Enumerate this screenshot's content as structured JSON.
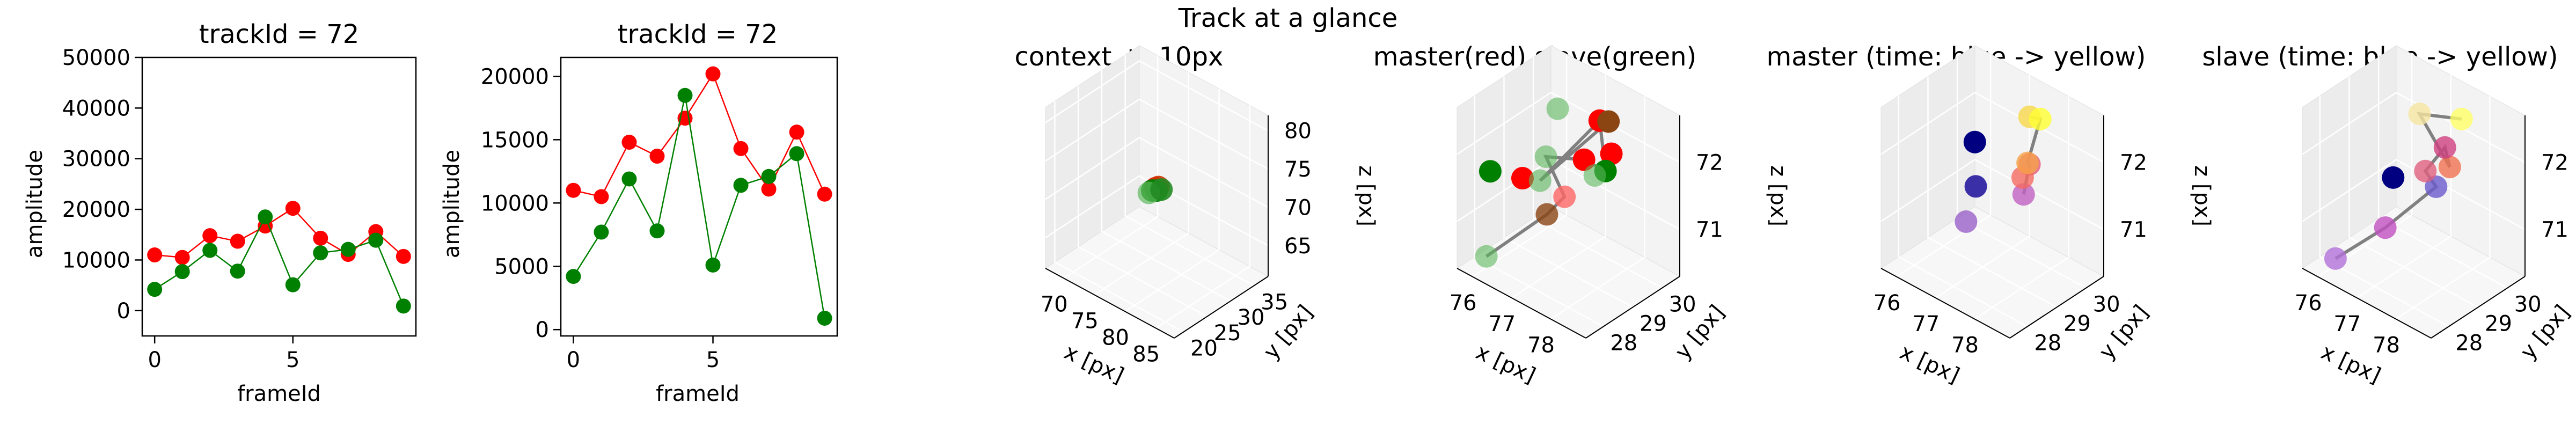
{
  "figure_title": "Track at a glance",
  "chart_data": [
    {
      "type": "line",
      "title": "trackId = 72",
      "xlabel": "frameId",
      "ylabel": "amplitude",
      "xlim": [
        -0.45,
        9.45
      ],
      "ylim": [
        -5000,
        50000
      ],
      "xticks": [
        0,
        5
      ],
      "xtick_labels": [
        "0",
        "5"
      ],
      "yticks": [
        0,
        10000,
        20000,
        30000,
        40000,
        50000
      ],
      "ytick_labels": [
        "0",
        "10000",
        "20000",
        "30000",
        "40000",
        "50000"
      ],
      "x": [
        0,
        1,
        2,
        3,
        4,
        5,
        6,
        7,
        8,
        9
      ],
      "series": [
        {
          "name": "master",
          "color": "#ff0000",
          "values": [
            11000,
            10500,
            14800,
            13700,
            16700,
            20200,
            14300,
            11100,
            15600,
            10700
          ]
        },
        {
          "name": "slave",
          "color": "#008000",
          "values": [
            4200,
            7700,
            11900,
            7800,
            18500,
            5100,
            11400,
            12100,
            13900,
            900
          ]
        }
      ]
    },
    {
      "type": "line",
      "title": "trackId = 72",
      "xlabel": "frameId",
      "ylabel": "amplitude",
      "xlim": [
        -0.45,
        9.45
      ],
      "ylim": [
        -500,
        21500
      ],
      "xticks": [
        0,
        5
      ],
      "xtick_labels": [
        "0",
        "5"
      ],
      "yticks": [
        0,
        5000,
        10000,
        15000,
        20000
      ],
      "ytick_labels": [
        "0",
        "5000",
        "10000",
        "15000",
        "20000"
      ],
      "x": [
        0,
        1,
        2,
        3,
        4,
        5,
        6,
        7,
        8,
        9
      ],
      "series": [
        {
          "name": "master",
          "color": "#ff0000",
          "values": [
            11000,
            10500,
            14800,
            13700,
            16700,
            20200,
            14300,
            11100,
            15600,
            10700
          ]
        },
        {
          "name": "slave",
          "color": "#008000",
          "values": [
            4200,
            7700,
            11900,
            7800,
            18500,
            5100,
            11400,
            12100,
            13900,
            900
          ]
        }
      ]
    },
    {
      "type": "scatter3d",
      "title": "context +- 10px",
      "xlabel": "x [px]",
      "ylabel": "y [px]",
      "zlabel": "z [px]",
      "xlim": [
        67,
        88
      ],
      "ylim": [
        18,
        38
      ],
      "zlim": [
        61,
        82
      ],
      "xticks": [
        70,
        75,
        80,
        85
      ],
      "yticks": [
        20,
        25,
        30,
        35
      ],
      "zticks": [
        65,
        70,
        75,
        80
      ],
      "xtick_labels": [
        "70",
        "75",
        "80",
        "85"
      ],
      "ytick_labels": [
        "20",
        "25",
        "30",
        "35"
      ],
      "ztick_labels": [
        "65",
        "70",
        "75",
        "80"
      ],
      "points": [
        {
          "x": 77.0,
          "y": 28.4,
          "z": 71.6,
          "color": "#ff0000",
          "alpha": 0.9
        },
        {
          "x": 77.3,
          "y": 28.6,
          "z": 71.8,
          "color": "#cc3300",
          "alpha": 0.9
        },
        {
          "x": 76.6,
          "y": 28.2,
          "z": 71.2,
          "color": "#008000",
          "alpha": 0.9
        },
        {
          "x": 76.8,
          "y": 28.9,
          "z": 71.0,
          "color": "#008000",
          "alpha": 0.9
        },
        {
          "x": 76.2,
          "y": 28.0,
          "z": 70.8,
          "color": "#5cb85c",
          "alpha": 0.7
        },
        {
          "x": 77.5,
          "y": 29.0,
          "z": 71.4,
          "color": "#228b22",
          "alpha": 0.9
        }
      ],
      "path": [
        [
          76.2,
          28.0,
          70.8
        ],
        [
          76.8,
          28.9,
          71.0
        ],
        [
          77.3,
          28.6,
          71.8
        ]
      ]
    },
    {
      "type": "scatter3d",
      "title": "master(red) slave(green)",
      "xlabel": "x [px]",
      "ylabel": "y [px]",
      "zlabel": "z [px]",
      "xlim": [
        75.6,
        78.9
      ],
      "ylim": [
        27.4,
        30.6
      ],
      "zlim": [
        70.3,
        72.7
      ],
      "xticks": [
        76,
        77,
        78
      ],
      "yticks": [
        28,
        29,
        30
      ],
      "zticks": [
        71,
        72
      ],
      "xtick_labels": [
        "76",
        "77",
        "78"
      ],
      "ytick_labels": [
        "28",
        "29",
        "30"
      ],
      "ztick_labels": [
        "71",
        "72"
      ],
      "points": [
        {
          "x": 76.9,
          "y": 29.1,
          "z": 72.6,
          "color": "#5cb85c",
          "alpha": 0.6
        },
        {
          "x": 77.6,
          "y": 29.6,
          "z": 72.5,
          "color": "#ff0000",
          "alpha": 1.0
        },
        {
          "x": 77.6,
          "y": 29.9,
          "z": 72.4,
          "color": "#8b4513",
          "alpha": 1.0
        },
        {
          "x": 76.9,
          "y": 28.7,
          "z": 72.0,
          "color": "#5cb85c",
          "alpha": 0.6
        },
        {
          "x": 77.9,
          "y": 29.6,
          "z": 72.1,
          "color": "#ff0000",
          "alpha": 1.0
        },
        {
          "x": 77.5,
          "y": 29.2,
          "z": 72.0,
          "color": "#ff0000",
          "alpha": 1.0
        },
        {
          "x": 77.9,
          "y": 29.4,
          "z": 71.9,
          "color": "#008000",
          "alpha": 1.0
        },
        {
          "x": 77.7,
          "y": 29.3,
          "z": 71.8,
          "color": "#5cb85c",
          "alpha": 0.6
        },
        {
          "x": 76.6,
          "y": 28.3,
          "z": 71.7,
          "color": "#ff0000",
          "alpha": 1.0
        },
        {
          "x": 76.9,
          "y": 28.5,
          "z": 71.7,
          "color": "#5cb85c",
          "alpha": 0.6
        },
        {
          "x": 76.0,
          "y": 28.0,
          "z": 71.7,
          "color": "#008000",
          "alpha": 1.0
        },
        {
          "x": 77.3,
          "y": 28.8,
          "z": 71.5,
          "color": "#ff6666",
          "alpha": 0.8
        },
        {
          "x": 77.0,
          "y": 28.6,
          "z": 71.2,
          "color": "#8b4513",
          "alpha": 0.8
        },
        {
          "x": 75.9,
          "y": 28.0,
          "z": 70.4,
          "color": "#5cb85c",
          "alpha": 0.6
        }
      ],
      "path": [
        [
          75.9,
          28.0,
          70.4
        ],
        [
          77.0,
          28.6,
          71.2
        ],
        [
          77.3,
          28.8,
          71.5
        ],
        [
          76.9,
          28.7,
          72.0
        ],
        [
          77.5,
          29.2,
          72.0
        ],
        [
          77.9,
          29.4,
          71.9
        ],
        [
          77.6,
          29.6,
          72.5
        ],
        [
          76.9,
          28.5,
          71.7
        ],
        [
          77.6,
          29.9,
          72.4
        ]
      ]
    },
    {
      "type": "scatter3d",
      "title": "master (time: blue -> yellow)",
      "xlabel": "x [px]",
      "ylabel": "y [px]",
      "zlabel": "z [px]",
      "xlim": [
        75.6,
        78.9
      ],
      "ylim": [
        27.4,
        30.6
      ],
      "zlim": [
        70.3,
        72.7
      ],
      "xticks": [
        76,
        77,
        78
      ],
      "yticks": [
        28,
        29,
        30
      ],
      "zticks": [
        71,
        72
      ],
      "xtick_labels": [
        "76",
        "77",
        "78"
      ],
      "ytick_labels": [
        "28",
        "29",
        "30"
      ],
      "ztick_labels": [
        "71",
        "72"
      ],
      "points": [
        {
          "x": 76.8,
          "y": 29.0,
          "z": 72.1,
          "color": "#000080",
          "alpha": 1.0
        },
        {
          "x": 76.9,
          "y": 28.9,
          "z": 71.5,
          "color": "#3a2fa6",
          "alpha": 1.0
        },
        {
          "x": 76.8,
          "y": 28.7,
          "z": 71.0,
          "color": "#9a60c8",
          "alpha": 0.8
        },
        {
          "x": 77.6,
          "y": 29.6,
          "z": 71.4,
          "color": "#c060c0",
          "alpha": 0.8
        },
        {
          "x": 77.9,
          "y": 29.4,
          "z": 72.0,
          "color": "#e65a7a",
          "alpha": 0.8
        },
        {
          "x": 77.8,
          "y": 29.3,
          "z": 71.8,
          "color": "#f46a60",
          "alpha": 0.8
        },
        {
          "x": 77.7,
          "y": 29.6,
          "z": 71.9,
          "color": "#f6a24a",
          "alpha": 0.8
        },
        {
          "x": 77.6,
          "y": 29.8,
          "z": 72.5,
          "color": "#f8d84a",
          "alpha": 0.8
        },
        {
          "x": 77.8,
          "y": 29.9,
          "z": 72.5,
          "color": "#ffff33",
          "alpha": 0.8
        }
      ],
      "path": [
        [
          77.6,
          29.8,
          72.5
        ],
        [
          77.8,
          29.9,
          72.5
        ],
        [
          77.7,
          29.6,
          71.9
        ],
        [
          77.9,
          29.4,
          72.0
        ],
        [
          77.6,
          29.6,
          71.4
        ]
      ]
    },
    {
      "type": "scatter3d",
      "title": "slave (time: blue -> yellow)",
      "xlabel": "x [px]",
      "ylabel": "y [px]",
      "zlabel": "z [px]",
      "xlim": [
        75.6,
        78.9
      ],
      "ylim": [
        27.4,
        30.6
      ],
      "zlim": [
        70.3,
        72.7
      ],
      "xticks": [
        76,
        77,
        78
      ],
      "yticks": [
        28,
        29,
        30
      ],
      "zticks": [
        71,
        72
      ],
      "xtick_labels": [
        "76",
        "77",
        "78"
      ],
      "ytick_labels": [
        "28",
        "29",
        "30"
      ],
      "ztick_labels": [
        "71",
        "72"
      ],
      "points": [
        {
          "x": 76.0,
          "y": 28.0,
          "z": 70.4,
          "color": "#b070d8",
          "alpha": 0.8
        },
        {
          "x": 76.9,
          "y": 28.5,
          "z": 71.0,
          "color": "#c050c0",
          "alpha": 0.8
        },
        {
          "x": 76.8,
          "y": 28.9,
          "z": 71.6,
          "color": "#000080",
          "alpha": 1.0
        },
        {
          "x": 77.6,
          "y": 29.3,
          "z": 71.6,
          "color": "#6a5acd",
          "alpha": 0.8
        },
        {
          "x": 77.4,
          "y": 29.2,
          "z": 71.8,
          "color": "#e06080",
          "alpha": 0.8
        },
        {
          "x": 77.8,
          "y": 29.5,
          "z": 71.9,
          "color": "#f07050",
          "alpha": 0.8
        },
        {
          "x": 77.6,
          "y": 29.6,
          "z": 72.1,
          "color": "#d04080",
          "alpha": 0.8
        },
        {
          "x": 77.1,
          "y": 29.4,
          "z": 72.5,
          "color": "#f5e6a0",
          "alpha": 0.8
        },
        {
          "x": 77.8,
          "y": 29.9,
          "z": 72.5,
          "color": "#ffff66",
          "alpha": 0.8
        }
      ],
      "path": [
        [
          76.0,
          28.0,
          70.4
        ],
        [
          76.9,
          28.5,
          71.0
        ],
        [
          77.6,
          29.3,
          71.6
        ],
        [
          77.4,
          29.2,
          71.8
        ],
        [
          77.6,
          29.6,
          72.1
        ],
        [
          77.8,
          29.5,
          71.9
        ],
        [
          77.1,
          29.4,
          72.5
        ],
        [
          77.8,
          29.9,
          72.5
        ]
      ]
    }
  ]
}
